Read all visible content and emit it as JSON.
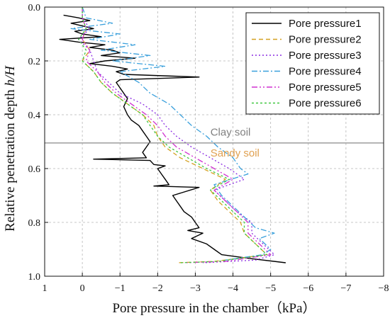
{
  "chart_data": {
    "type": "line",
    "xlabel": "Pore pressure in the chamber（kPa）",
    "ylabel_main": "Relative penetration depth ",
    "ylabel_italic": "h/H",
    "xlim": [
      1,
      -8
    ],
    "ylim": [
      0.0,
      1.0
    ],
    "x_ticks": [
      1,
      0,
      -1,
      -2,
      -3,
      -4,
      -5,
      -6,
      -7,
      -8
    ],
    "x_tick_labels": [
      "1",
      "0",
      "−1",
      "−2",
      "−3",
      "−4",
      "−5",
      "−6",
      "−7",
      "−8"
    ],
    "y_ticks": [
      0.0,
      0.2,
      0.4,
      0.6,
      0.8,
      1.0
    ],
    "y_tick_labels": [
      "0.0",
      "0.2",
      "0.4",
      "0.6",
      "0.8",
      "1.0"
    ],
    "grid": true,
    "legend_position": "top-right",
    "boundary_depth": 0.505,
    "boundary_color": "#8a8a8a",
    "annotations": [
      {
        "text": "Clay soil",
        "x": -3.4,
        "y": 0.478,
        "color": "#808080"
      },
      {
        "text": "Sandy soil",
        "x": -3.4,
        "y": 0.555,
        "color": "#e0a050"
      }
    ],
    "series": [
      {
        "name": "Pore pressure1",
        "color": "#000000",
        "dash": "",
        "points": [
          [
            0.5,
            0.03
          ],
          [
            0.1,
            0.04
          ],
          [
            -0.2,
            0.05
          ],
          [
            0.3,
            0.06
          ],
          [
            0.0,
            0.07
          ],
          [
            -0.3,
            0.08
          ],
          [
            0.2,
            0.09
          ],
          [
            0.0,
            0.1
          ],
          [
            -0.5,
            0.11
          ],
          [
            0.6,
            0.12
          ],
          [
            0.1,
            0.13
          ],
          [
            -0.6,
            0.14
          ],
          [
            -0.2,
            0.15
          ],
          [
            -0.8,
            0.16
          ],
          [
            -1.0,
            0.17
          ],
          [
            -0.5,
            0.18
          ],
          [
            -1.4,
            0.19
          ],
          [
            -0.6,
            0.2
          ],
          [
            -0.2,
            0.21
          ],
          [
            -0.8,
            0.22
          ],
          [
            -1.2,
            0.23
          ],
          [
            -0.9,
            0.24
          ],
          [
            -1.1,
            0.25
          ],
          [
            -3.1,
            0.26
          ],
          [
            -1.0,
            0.27
          ],
          [
            -0.9,
            0.28
          ],
          [
            -1.0,
            0.3
          ],
          [
            -1.1,
            0.32
          ],
          [
            -1.2,
            0.34
          ],
          [
            -1.1,
            0.37
          ],
          [
            -1.2,
            0.4
          ],
          [
            -1.3,
            0.42
          ],
          [
            -1.5,
            0.44
          ],
          [
            -1.6,
            0.46
          ],
          [
            -1.7,
            0.48
          ],
          [
            -1.8,
            0.5
          ],
          [
            -1.7,
            0.52
          ],
          [
            -1.6,
            0.54
          ],
          [
            -1.7,
            0.56
          ],
          [
            -0.3,
            0.565
          ],
          [
            -1.8,
            0.57
          ],
          [
            -1.9,
            0.585
          ],
          [
            -2.2,
            0.59
          ],
          [
            -2.0,
            0.6
          ],
          [
            -2.1,
            0.62
          ],
          [
            -2.2,
            0.64
          ],
          [
            -2.3,
            0.66
          ],
          [
            -1.9,
            0.665
          ],
          [
            -3.1,
            0.67
          ],
          [
            -2.4,
            0.7
          ],
          [
            -2.5,
            0.72
          ],
          [
            -2.6,
            0.74
          ],
          [
            -2.7,
            0.76
          ],
          [
            -2.9,
            0.78
          ],
          [
            -3.0,
            0.8
          ],
          [
            -3.1,
            0.82
          ],
          [
            -2.8,
            0.83
          ],
          [
            -3.2,
            0.84
          ],
          [
            -2.9,
            0.86
          ],
          [
            -3.3,
            0.88
          ],
          [
            -3.5,
            0.9
          ],
          [
            -3.7,
            0.92
          ],
          [
            -4.5,
            0.935
          ],
          [
            -5.4,
            0.95
          ]
        ]
      },
      {
        "name": "Pore pressure2",
        "color": "#d4a020",
        "dash": "6,4",
        "points": [
          [
            0.0,
            0.0
          ],
          [
            0.0,
            0.04
          ],
          [
            -0.1,
            0.08
          ],
          [
            0.0,
            0.12
          ],
          [
            -0.2,
            0.16
          ],
          [
            0.0,
            0.2
          ],
          [
            -0.3,
            0.24
          ],
          [
            -0.5,
            0.28
          ],
          [
            -0.8,
            0.32
          ],
          [
            -1.2,
            0.36
          ],
          [
            -1.6,
            0.4
          ],
          [
            -1.9,
            0.44
          ],
          [
            -2.0,
            0.48
          ],
          [
            -2.2,
            0.52
          ],
          [
            -2.6,
            0.56
          ],
          [
            -3.2,
            0.6
          ],
          [
            -3.8,
            0.64
          ],
          [
            -3.4,
            0.68
          ],
          [
            -3.6,
            0.72
          ],
          [
            -3.9,
            0.76
          ],
          [
            -4.2,
            0.8
          ],
          [
            -4.3,
            0.84
          ],
          [
            -4.6,
            0.88
          ],
          [
            -4.9,
            0.92
          ],
          [
            -3.5,
            0.945
          ],
          [
            -2.5,
            0.95
          ]
        ]
      },
      {
        "name": "Pore pressure3",
        "color": "#8a2be2",
        "dash": "2,3",
        "points": [
          [
            0.0,
            0.0
          ],
          [
            0.0,
            0.04
          ],
          [
            -0.2,
            0.08
          ],
          [
            0.1,
            0.12
          ],
          [
            -0.2,
            0.16
          ],
          [
            -0.3,
            0.2
          ],
          [
            -0.4,
            0.24
          ],
          [
            -0.7,
            0.28
          ],
          [
            -1.0,
            0.32
          ],
          [
            -1.6,
            0.36
          ],
          [
            -2.0,
            0.4
          ],
          [
            -2.2,
            0.44
          ],
          [
            -2.5,
            0.48
          ],
          [
            -2.9,
            0.52
          ],
          [
            -3.4,
            0.56
          ],
          [
            -3.9,
            0.6
          ],
          [
            -4.3,
            0.64
          ],
          [
            -3.5,
            0.68
          ],
          [
            -3.8,
            0.72
          ],
          [
            -4.1,
            0.76
          ],
          [
            -4.5,
            0.8
          ],
          [
            -4.5,
            0.84
          ],
          [
            -4.8,
            0.88
          ],
          [
            -5.1,
            0.92
          ],
          [
            -4.6,
            0.94
          ],
          [
            -3.2,
            0.95
          ]
        ]
      },
      {
        "name": "Pore pressure4",
        "color": "#3aa0dc",
        "dash": "8,3,2,3",
        "points": [
          [
            0.0,
            0.0
          ],
          [
            -0.1,
            0.04
          ],
          [
            -0.8,
            0.06
          ],
          [
            0.3,
            0.08
          ],
          [
            -1.0,
            0.1
          ],
          [
            -0.2,
            0.12
          ],
          [
            -1.4,
            0.14
          ],
          [
            -0.5,
            0.16
          ],
          [
            -1.8,
            0.18
          ],
          [
            -0.8,
            0.2
          ],
          [
            -2.2,
            0.22
          ],
          [
            -1.0,
            0.24
          ],
          [
            -1.5,
            0.28
          ],
          [
            -1.8,
            0.32
          ],
          [
            -2.3,
            0.36
          ],
          [
            -2.6,
            0.4
          ],
          [
            -2.9,
            0.44
          ],
          [
            -3.3,
            0.48
          ],
          [
            -3.6,
            0.52
          ],
          [
            -4.0,
            0.56
          ],
          [
            -4.2,
            0.6
          ],
          [
            -4.4,
            0.62
          ],
          [
            -3.5,
            0.66
          ],
          [
            -3.7,
            0.7
          ],
          [
            -4.0,
            0.74
          ],
          [
            -4.3,
            0.78
          ],
          [
            -4.6,
            0.82
          ],
          [
            -5.1,
            0.84
          ],
          [
            -4.7,
            0.86
          ],
          [
            -5.0,
            0.9
          ],
          [
            -4.8,
            0.92
          ],
          [
            -3.8,
            0.94
          ]
        ]
      },
      {
        "name": "Pore pressure5",
        "color": "#d030d0",
        "dash": "8,3,2,3,2,3",
        "points": [
          [
            0.0,
            0.0
          ],
          [
            0.0,
            0.04
          ],
          [
            -0.1,
            0.08
          ],
          [
            0.0,
            0.12
          ],
          [
            -0.2,
            0.16
          ],
          [
            -0.1,
            0.2
          ],
          [
            -0.4,
            0.24
          ],
          [
            -0.6,
            0.28
          ],
          [
            -0.9,
            0.32
          ],
          [
            -1.3,
            0.36
          ],
          [
            -1.7,
            0.4
          ],
          [
            -2.0,
            0.44
          ],
          [
            -2.2,
            0.48
          ],
          [
            -2.5,
            0.52
          ],
          [
            -3.0,
            0.56
          ],
          [
            -3.5,
            0.6
          ],
          [
            -4.0,
            0.64
          ],
          [
            -3.5,
            0.68
          ],
          [
            -3.8,
            0.72
          ],
          [
            -4.1,
            0.76
          ],
          [
            -4.4,
            0.8
          ],
          [
            -4.4,
            0.84
          ],
          [
            -4.7,
            0.88
          ],
          [
            -5.0,
            0.92
          ],
          [
            -3.8,
            0.945
          ],
          [
            -2.7,
            0.95
          ]
        ]
      },
      {
        "name": "Pore pressure6",
        "color": "#40c840",
        "dash": "3,3",
        "points": [
          [
            0.0,
            0.0
          ],
          [
            0.0,
            0.04
          ],
          [
            -0.1,
            0.08
          ],
          [
            0.1,
            0.12
          ],
          [
            -0.1,
            0.16
          ],
          [
            0.0,
            0.2
          ],
          [
            -0.3,
            0.24
          ],
          [
            -0.5,
            0.28
          ],
          [
            -0.8,
            0.32
          ],
          [
            -1.2,
            0.36
          ],
          [
            -1.6,
            0.4
          ],
          [
            -1.8,
            0.44
          ],
          [
            -2.0,
            0.48
          ],
          [
            -2.3,
            0.52
          ],
          [
            -2.8,
            0.56
          ],
          [
            -3.3,
            0.6
          ],
          [
            -3.9,
            0.64
          ],
          [
            -3.4,
            0.68
          ],
          [
            -3.7,
            0.72
          ],
          [
            -4.0,
            0.76
          ],
          [
            -4.3,
            0.8
          ],
          [
            -4.3,
            0.84
          ],
          [
            -4.6,
            0.88
          ],
          [
            -4.9,
            0.92
          ],
          [
            -3.6,
            0.945
          ],
          [
            -2.6,
            0.95
          ]
        ]
      }
    ]
  }
}
